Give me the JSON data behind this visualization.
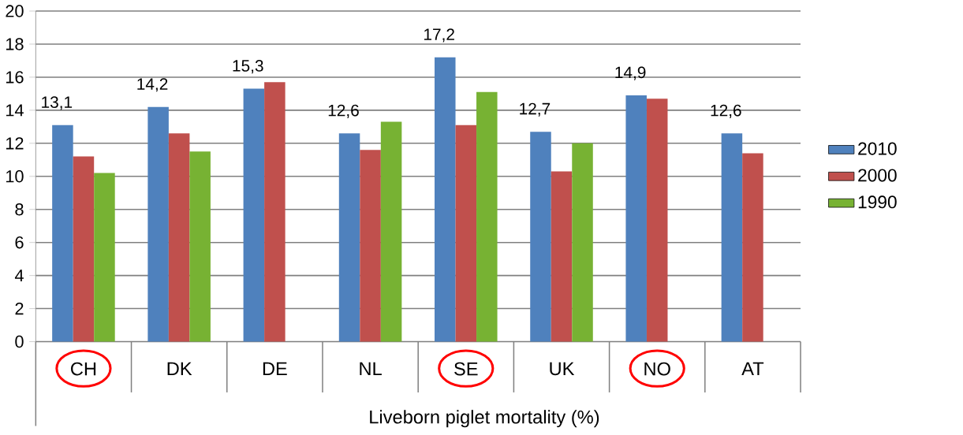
{
  "chart_data": {
    "type": "bar",
    "xlabel": "Liveborn piglet mortality (%)",
    "categories": [
      "CH",
      "DK",
      "DE",
      "NL",
      "SE",
      "UK",
      "NO",
      "AT"
    ],
    "series": [
      {
        "name": "2010",
        "color": "#4f81bd",
        "values": [
          13.1,
          14.2,
          15.3,
          12.6,
          17.2,
          12.7,
          14.9,
          12.6
        ],
        "value_labels": [
          "13,1",
          "14,2",
          "15,3",
          "12,6",
          "17,2",
          "12,7",
          "14,9",
          "12,6"
        ]
      },
      {
        "name": "2000",
        "color": "#c0504d",
        "values": [
          11.2,
          12.6,
          15.7,
          11.6,
          13.1,
          10.3,
          14.7,
          11.4
        ]
      },
      {
        "name": "1990",
        "color": "#77b233",
        "values": [
          10.2,
          11.5,
          null,
          13.3,
          15.1,
          12.0,
          null,
          null
        ]
      }
    ],
    "ylim": [
      0,
      20
    ],
    "yticks": [
      0,
      2,
      4,
      6,
      8,
      10,
      12,
      14,
      16,
      18,
      20
    ],
    "grid": "y",
    "legend": "right"
  }
}
